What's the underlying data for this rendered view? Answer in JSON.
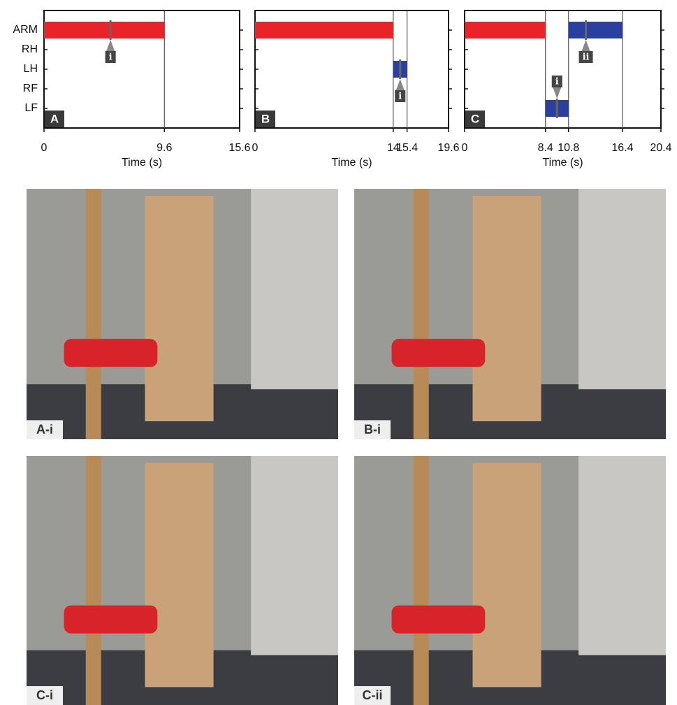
{
  "chart_data": [
    {
      "type": "timeline",
      "panel": "A",
      "categories": [
        "ARM",
        "RH",
        "LH",
        "RF",
        "LF"
      ],
      "xlabel": "Time (s)",
      "xlim": [
        0,
        15.6
      ],
      "xticks": [
        0,
        9.6,
        15.6
      ],
      "grid": true,
      "bars": [
        {
          "lane": "ARM",
          "start": 0,
          "end": 9.6,
          "color": "#e8232a"
        }
      ],
      "markers": [
        {
          "lane": "ARM",
          "x": 5.3,
          "label": "i",
          "side": "below"
        }
      ]
    },
    {
      "type": "timeline",
      "panel": "B",
      "xlabel": "Time (s)",
      "xlim": [
        0,
        19.6
      ],
      "xticks": [
        0,
        14,
        15.4,
        19.6
      ],
      "grid": true,
      "bars": [
        {
          "lane": "ARM",
          "start": 0,
          "end": 14,
          "color": "#e8232a"
        },
        {
          "lane": "LH",
          "start": 14,
          "end": 15.4,
          "color": "#2b3fa0"
        }
      ],
      "markers": [
        {
          "lane": "LH",
          "x": 14.7,
          "label": "i",
          "side": "below"
        }
      ]
    },
    {
      "type": "timeline",
      "panel": "C",
      "xlabel": "Time (s)",
      "xlim": [
        0,
        20.4
      ],
      "xticks": [
        0,
        8.4,
        10.8,
        16.4,
        20.4
      ],
      "grid": true,
      "bars": [
        {
          "lane": "ARM",
          "start": 0,
          "end": 8.4,
          "color": "#e8232a"
        },
        {
          "lane": "ARM",
          "start": 10.8,
          "end": 16.4,
          "color": "#2b3fa0"
        },
        {
          "lane": "LF",
          "start": 8.4,
          "end": 10.8,
          "color": "#2b3fa0"
        }
      ],
      "markers": [
        {
          "lane": "LF",
          "x": 9.6,
          "label": "i",
          "side": "above"
        },
        {
          "lane": "ARM",
          "x": 12.6,
          "label": "ii",
          "side": "below"
        }
      ]
    }
  ],
  "photos": [
    {
      "label": "A-i"
    },
    {
      "label": "B-i"
    },
    {
      "label": "C-i"
    },
    {
      "label": "C-ii"
    }
  ]
}
